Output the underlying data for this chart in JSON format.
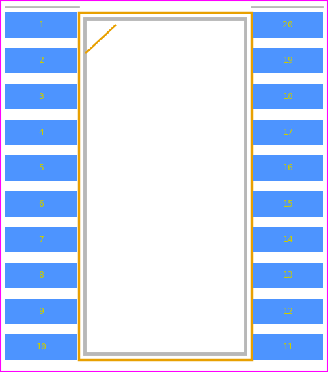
{
  "background_color": "#ffffff",
  "border_color": "#ff00ff",
  "pin_color": "#4d94ff",
  "pin_text_color": "#cccc00",
  "body_outline_color": "#e8a000",
  "body_fill_color": "#ffffff",
  "gray_color": "#b8b8b8",
  "n_pins": 10,
  "left_pins": [
    1,
    2,
    3,
    4,
    5,
    6,
    7,
    8,
    9,
    10
  ],
  "right_pins": [
    20,
    19,
    18,
    17,
    16,
    15,
    14,
    13,
    12,
    11
  ],
  "figsize": [
    4.8,
    5.44
  ],
  "dpi": 100,
  "pin_font_size": 9.5,
  "orange_lw": 2.5,
  "gray_lw": 3.5,
  "gray_line_lw": 2.0
}
